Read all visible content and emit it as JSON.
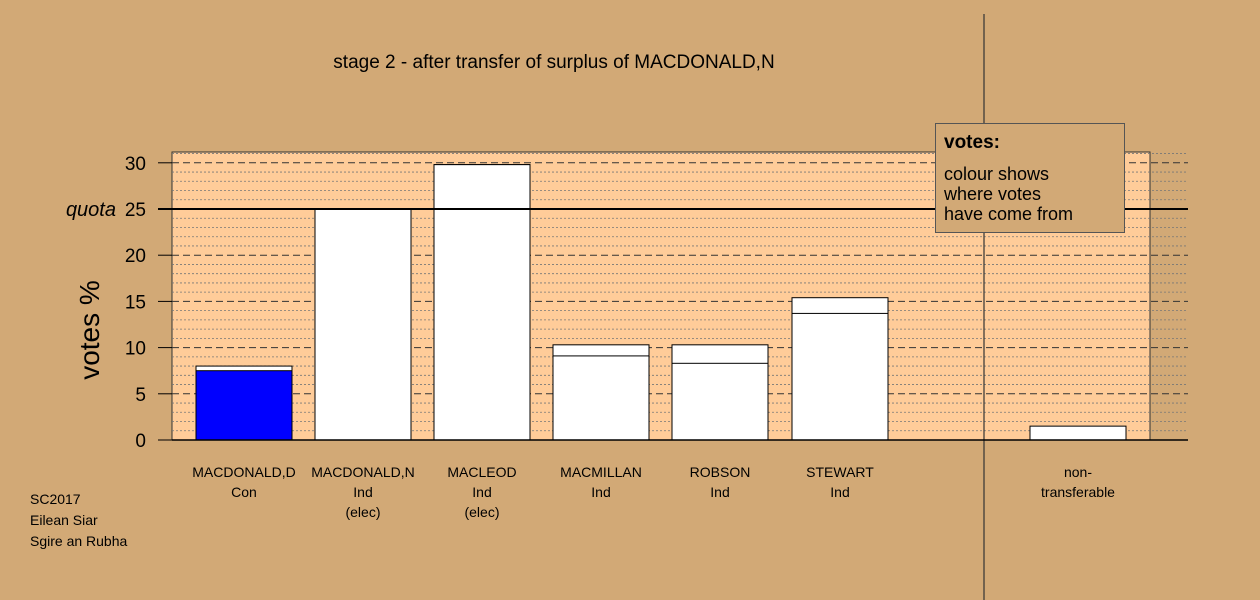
{
  "header": {
    "title": "stage 2 - after transfer of surplus of MACDONALD,N"
  },
  "chart_data": {
    "type": "bar",
    "title": "stage 2 - after transfer of surplus of MACDONALD,N",
    "ylabel": "votes %",
    "ylim": [
      0,
      31
    ],
    "yticks": [
      "0",
      "5",
      "10",
      "15",
      "20",
      "25",
      "30"
    ],
    "quota": {
      "label": "quota",
      "value": 25
    },
    "categories": [
      {
        "name": "MACDONALD,D",
        "party": "Con",
        "note": ""
      },
      {
        "name": "MACDONALD,N",
        "party": "Ind",
        "note": "(elec)"
      },
      {
        "name": "MACLEOD",
        "party": "Ind",
        "note": "(elec)"
      },
      {
        "name": "MACMILLAN",
        "party": "Ind",
        "note": ""
      },
      {
        "name": "ROBSON",
        "party": "Ind",
        "note": ""
      },
      {
        "name": "STEWART",
        "party": "Ind",
        "note": ""
      },
      {
        "name": "non-",
        "party": "transferable",
        "note": ""
      }
    ],
    "series": [
      {
        "values": [
          7.5,
          25.0,
          29.8,
          9.1,
          8.3,
          13.7,
          0
        ]
      },
      {
        "values": [
          0.5,
          0,
          0,
          1.2,
          2.0,
          1.7,
          1.5
        ]
      }
    ],
    "totals": [
      8.0,
      25.0,
      29.8,
      10.3,
      10.3,
      15.4,
      1.5
    ],
    "grid": true,
    "legend": "top-right"
  },
  "legend": {
    "title": "votes:",
    "lines": [
      "colour shows",
      "where votes",
      "have come from"
    ]
  },
  "footer": {
    "lines": [
      "SC2017",
      "Eilean Siar",
      "Sgire an Rubha"
    ]
  },
  "colors": {
    "background": "#d2a976",
    "plot_area": "#ffcc99",
    "con_blue": "#0000ff",
    "bar_white": "#ffffff"
  }
}
